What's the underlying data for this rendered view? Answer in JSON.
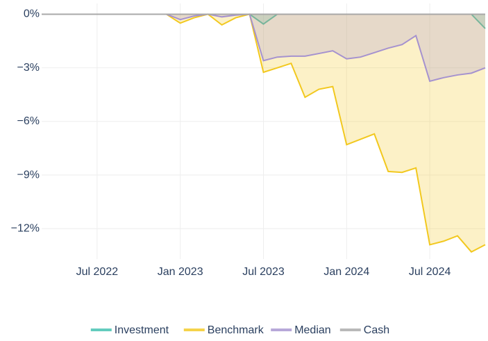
{
  "chart_data": {
    "type": "area",
    "x": [
      "2022-03",
      "2022-04",
      "2022-05",
      "2022-06",
      "2022-07",
      "2022-08",
      "2022-09",
      "2022-10",
      "2022-11",
      "2022-12",
      "2023-01",
      "2023-02",
      "2023-03",
      "2023-04",
      "2023-05",
      "2023-06",
      "2023-07",
      "2023-08",
      "2023-09",
      "2023-10",
      "2023-11",
      "2023-12",
      "2024-01",
      "2024-02",
      "2024-03",
      "2024-04",
      "2024-05",
      "2024-06",
      "2024-07",
      "2024-08",
      "2024-09",
      "2024-10",
      "2024-11"
    ],
    "series": [
      {
        "name": "Investment",
        "color": "#3cbfae",
        "values": [
          0,
          0,
          0,
          0,
          0,
          0,
          0,
          0,
          0,
          0,
          0,
          0,
          0,
          0,
          0,
          0,
          -0.55,
          0,
          0,
          0,
          0,
          0,
          0,
          0,
          0,
          0,
          0,
          0,
          0,
          0,
          0,
          0,
          -0.8
        ]
      },
      {
        "name": "Benchmark",
        "color": "#f2c81e",
        "values": [
          0,
          0,
          0,
          0,
          0,
          0,
          0,
          0,
          0,
          0,
          -0.5,
          -0.2,
          0,
          -0.6,
          -0.2,
          0,
          -3.25,
          -3.0,
          -2.75,
          -4.65,
          -4.2,
          -4.05,
          -7.3,
          -7.0,
          -6.7,
          -8.8,
          -8.85,
          -8.6,
          -12.9,
          -12.7,
          -12.4,
          -13.3,
          -12.9
        ]
      },
      {
        "name": "Median",
        "color": "#a592cf",
        "values": [
          0,
          0,
          0,
          0,
          0,
          0,
          0,
          0,
          0,
          0,
          -0.3,
          -0.1,
          0,
          -0.15,
          -0.05,
          0,
          -2.6,
          -2.4,
          -2.35,
          -2.35,
          -2.2,
          -2.05,
          -2.5,
          -2.4,
          -2.15,
          -1.9,
          -1.7,
          -1.2,
          -3.75,
          -3.55,
          -3.4,
          -3.3,
          -3.0
        ]
      },
      {
        "name": "Cash",
        "color": "#a8a8a8",
        "values": [
          0,
          0,
          0,
          0,
          0,
          0,
          0,
          0,
          0,
          0,
          0,
          0,
          0,
          0,
          0,
          0,
          0,
          0,
          0,
          0,
          0,
          0,
          0,
          0,
          0,
          0,
          0,
          0,
          0,
          0,
          0,
          0,
          0
        ]
      }
    ],
    "xlim": [
      "2022-03",
      "2024-11"
    ],
    "xticks": [
      {
        "value": "2022-07",
        "label": "Jul 2022"
      },
      {
        "value": "2023-01",
        "label": "Jan 2023"
      },
      {
        "value": "2023-07",
        "label": "Jul 2023"
      },
      {
        "value": "2024-01",
        "label": "Jan 2024"
      },
      {
        "value": "2024-07",
        "label": "Jul 2024"
      }
    ],
    "ylim": [
      -13.7,
      0.6
    ],
    "yticks": [
      {
        "value": 0,
        "label": "0%"
      },
      {
        "value": -3,
        "label": "−3%"
      },
      {
        "value": -6,
        "label": "−6%"
      },
      {
        "value": -9,
        "label": "−9%"
      },
      {
        "value": -12,
        "label": "−12%"
      }
    ],
    "grid": true,
    "legend": "bottom"
  }
}
